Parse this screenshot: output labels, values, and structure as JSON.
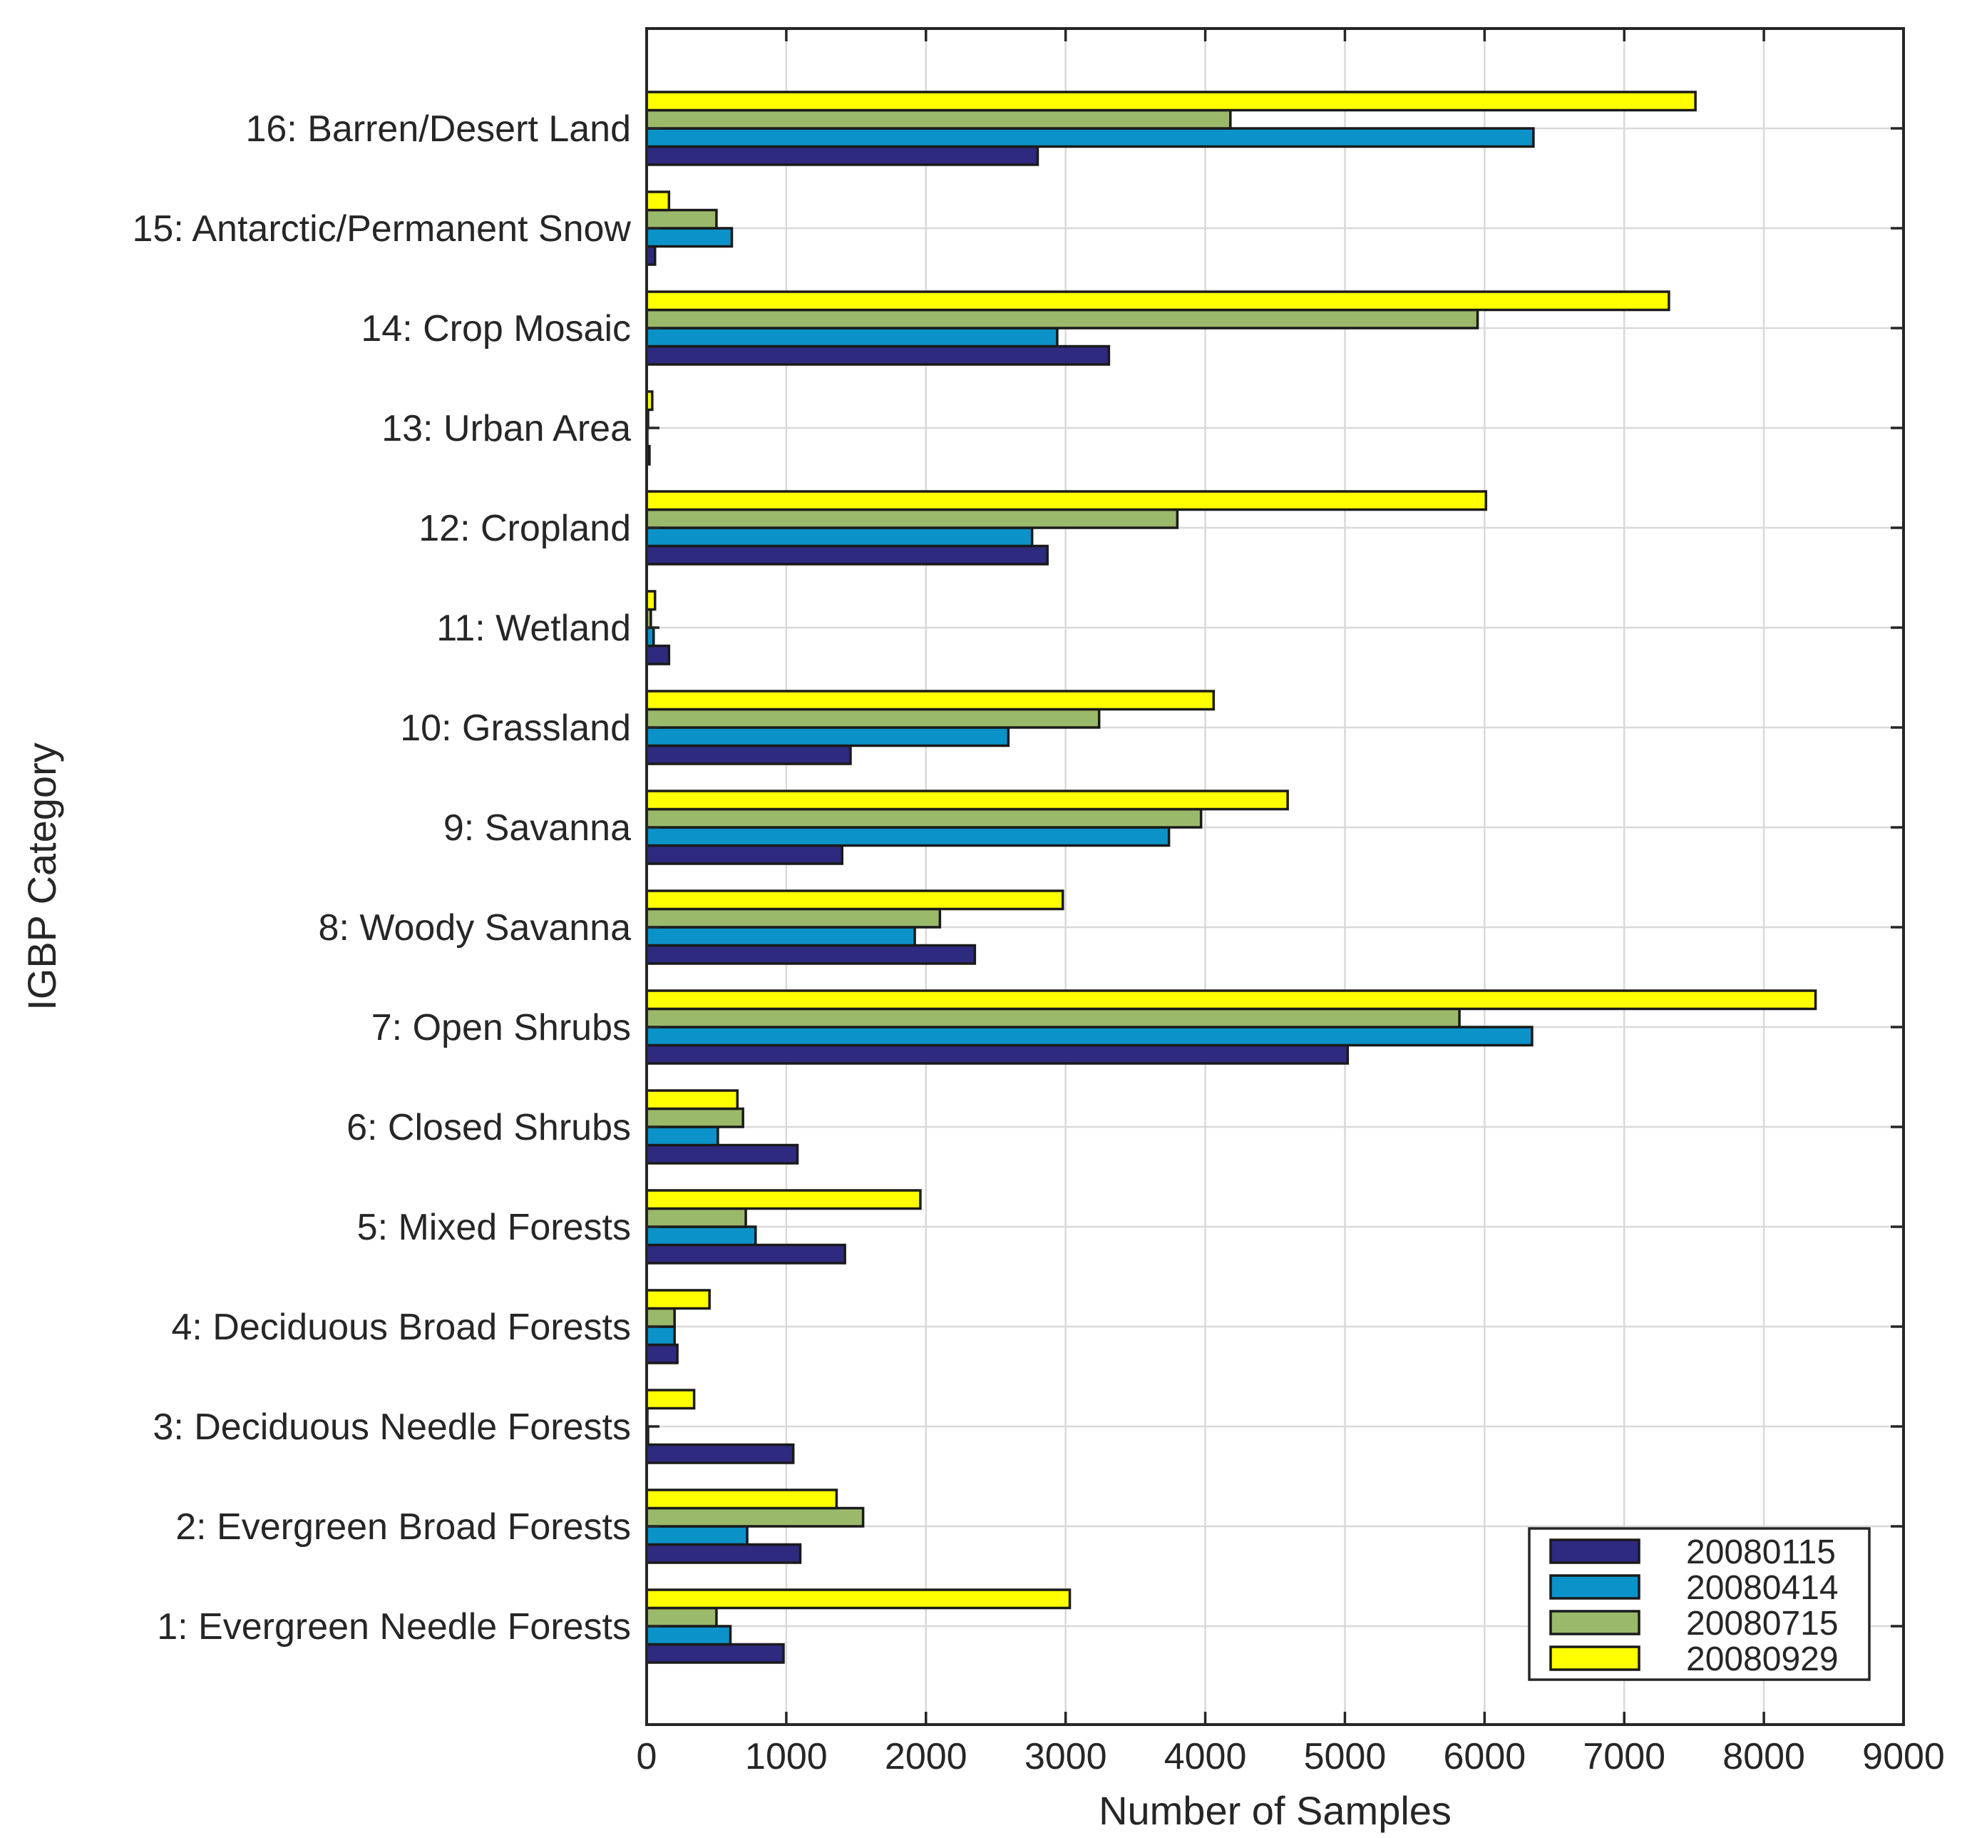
{
  "chart_data": {
    "type": "bar",
    "orientation": "horizontal",
    "xlabel": "Number of Samples",
    "ylabel": "IGBP Category",
    "xlim": [
      0,
      9000
    ],
    "xticks": [
      0,
      1000,
      2000,
      3000,
      4000,
      5000,
      6000,
      7000,
      8000,
      9000
    ],
    "grid": true,
    "legend_position": "bottom-right",
    "categories": [
      "1: Evergreen Needle Forests",
      "2: Evergreen Broad Forests",
      "3: Deciduous Needle Forests",
      "4: Deciduous Broad Forests",
      "5: Mixed Forests",
      "6: Closed Shrubs",
      "7: Open Shrubs",
      "8: Woody Savanna",
      "9: Savanna",
      "10: Grassland",
      "11: Wetland",
      "12: Cropland",
      "13: Urban Area",
      "14: Crop Mosaic",
      "15: Antarctic/Permanent Snow",
      "16: Barren/Desert Land"
    ],
    "series": [
      {
        "name": "20080115",
        "color": "#2e2a7f",
        "values": [
          980,
          1100,
          1050,
          220,
          1420,
          1080,
          5020,
          2350,
          1400,
          1460,
          160,
          2870,
          20,
          3310,
          60,
          2800
        ]
      },
      {
        "name": "20080414",
        "color": "#0b93c9",
        "values": [
          600,
          720,
          10,
          200,
          780,
          510,
          6340,
          1920,
          3740,
          2590,
          50,
          2760,
          5,
          2940,
          610,
          6350
        ]
      },
      {
        "name": "20080715",
        "color": "#9bb96a",
        "values": [
          500,
          1550,
          5,
          200,
          710,
          690,
          5820,
          2100,
          3970,
          3240,
          30,
          3800,
          10,
          5950,
          500,
          4180
        ]
      },
      {
        "name": "20080929",
        "color": "#ffff00",
        "values": [
          3030,
          1360,
          340,
          450,
          1960,
          650,
          8370,
          2980,
          4590,
          4060,
          60,
          6010,
          40,
          7320,
          160,
          7510
        ]
      }
    ]
  }
}
